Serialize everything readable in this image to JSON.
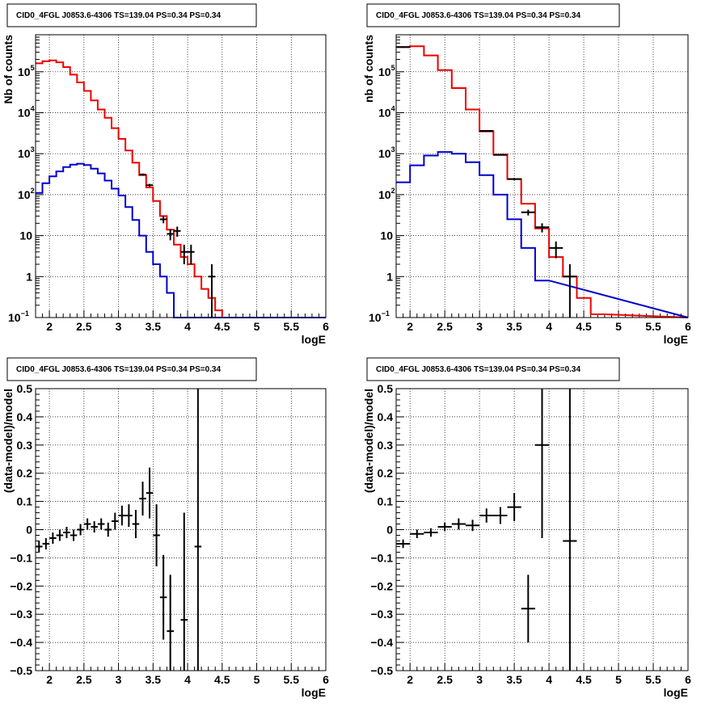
{
  "chart_data": [
    {
      "type": "line",
      "title": "CID0_4FGL J0853.6-4306 TS=139.04 PS=0.34 PS=0.34",
      "xlabel": "logE",
      "ylabel": "Nb of counts",
      "xlim": [
        1.8,
        6
      ],
      "ylim": [
        0.1,
        800000
      ],
      "yscale": "log",
      "grid": true,
      "x_ticks": [
        "2",
        "2.5",
        "3",
        "3.5",
        "4",
        "4.5",
        "5",
        "5.5",
        "6"
      ],
      "y_ticks": [
        {
          "value": 0.1,
          "label": "10",
          "exp": "−1"
        },
        {
          "value": 1,
          "label": "1",
          "exp": ""
        },
        {
          "value": 10,
          "label": "10",
          "exp": ""
        },
        {
          "value": 100,
          "label": "10",
          "exp": "2"
        },
        {
          "value": 1000,
          "label": "10",
          "exp": "3"
        },
        {
          "value": 10000,
          "label": "10",
          "exp": "4"
        },
        {
          "value": 100000,
          "label": "10",
          "exp": "5"
        }
      ],
      "bin_width": 0.1,
      "series": [
        {
          "color": "#ee0000",
          "style": "step",
          "x": [
            1.85,
            1.95,
            2.05,
            2.15,
            2.25,
            2.35,
            2.45,
            2.55,
            2.65,
            2.75,
            2.85,
            2.95,
            3.05,
            3.15,
            3.25,
            3.35,
            3.45,
            3.55,
            3.65,
            3.75,
            3.85,
            3.95,
            4.05,
            4.15,
            4.25,
            4.35,
            4.45,
            4.55
          ],
          "values": [
            160000,
            180000,
            190000,
            170000,
            130000,
            85000,
            55000,
            34000,
            20000,
            12000,
            7500,
            4200,
            2300,
            1200,
            600,
            300,
            150,
            70,
            30,
            14,
            6,
            3,
            2,
            1,
            0.5,
            0.3,
            0.15,
            0.1
          ]
        },
        {
          "color": "#0000cc",
          "style": "step",
          "x": [
            1.85,
            1.95,
            2.05,
            2.15,
            2.25,
            2.35,
            2.45,
            2.55,
            2.65,
            2.75,
            2.85,
            2.95,
            3.05,
            3.15,
            3.25,
            3.35,
            3.45,
            3.55,
            3.65,
            3.75,
            3.85
          ],
          "values": [
            110,
            190,
            280,
            370,
            470,
            540,
            570,
            530,
            430,
            330,
            220,
            140,
            95,
            50,
            24,
            10,
            4,
            2,
            1,
            0.4,
            0.1
          ]
        },
        {
          "color": "#000000",
          "style": "errorbar",
          "x": [
            3.35,
            3.45,
            3.65,
            3.75,
            3.85,
            3.95,
            4.05,
            4.35
          ],
          "values": [
            310,
            170,
            25,
            11,
            13,
            4,
            4,
            1
          ],
          "errors": [
            18,
            13,
            5,
            3.3,
            3.6,
            2,
            2,
            1
          ]
        }
      ]
    },
    {
      "type": "line",
      "title": "CID0_4FGL J0853.6-4306 TS=139.04 PS=0.34 PS=0.34",
      "xlabel": "logE",
      "ylabel": "nb of counts",
      "xlim": [
        1.8,
        6
      ],
      "ylim": [
        0.1,
        800000
      ],
      "yscale": "log",
      "grid": true,
      "x_ticks": [
        "2",
        "2.5",
        "3",
        "3.5",
        "4",
        "4.5",
        "5",
        "5.5",
        "6"
      ],
      "y_ticks": [
        {
          "value": 0.1,
          "label": "10",
          "exp": "−1"
        },
        {
          "value": 1,
          "label": "1",
          "exp": ""
        },
        {
          "value": 10,
          "label": "10",
          "exp": ""
        },
        {
          "value": 100,
          "label": "10",
          "exp": "2"
        },
        {
          "value": 1000,
          "label": "10",
          "exp": "3"
        },
        {
          "value": 10000,
          "label": "10",
          "exp": "4"
        },
        {
          "value": 100000,
          "label": "10",
          "exp": "5"
        }
      ],
      "bin_width": 0.2,
      "series": [
        {
          "color": "#ee0000",
          "style": "step",
          "x": [
            1.9,
            2.1,
            2.3,
            2.5,
            2.7,
            2.9,
            3.1,
            3.3,
            3.5,
            3.7,
            3.9,
            4.1,
            4.3,
            4.5,
            4.7
          ],
          "values": [
            400000,
            420000,
            250000,
            110000,
            40000,
            12000,
            3500,
            950,
            240,
            60,
            15,
            3,
            1,
            0.3,
            0.12
          ]
        },
        {
          "color": "#0000cc",
          "style": "step",
          "x": [
            1.9,
            2.1,
            2.3,
            2.5,
            2.7,
            2.9,
            3.1,
            3.3,
            3.5,
            3.7,
            3.9
          ],
          "values": [
            200,
            520,
            900,
            1100,
            1000,
            620,
            300,
            100,
            25,
            5,
            0.8
          ]
        },
        {
          "color": "#000000",
          "style": "errorbar",
          "x": [
            1.9,
            3.1,
            3.3,
            3.5,
            3.7,
            3.9,
            4.1,
            4.3
          ],
          "values": [
            400000,
            3600,
            930,
            240,
            37,
            16,
            5,
            1
          ],
          "errors": [
            630,
            60,
            30,
            15,
            6,
            4,
            2.2,
            1
          ]
        }
      ]
    },
    {
      "type": "scatter",
      "title": "CID0_4FGL J0853.6-4306 TS=139.04 PS=0.34 PS=0.34",
      "xlabel": "logE",
      "ylabel": "(data-model)/model",
      "xlim": [
        1.8,
        6
      ],
      "ylim": [
        -0.5,
        0.5
      ],
      "yscale": "linear",
      "grid": true,
      "x_ticks": [
        "2",
        "2.5",
        "3",
        "3.5",
        "4",
        "4.5",
        "5",
        "5.5",
        "6"
      ],
      "y_ticks": [
        {
          "value": 0.5,
          "label": "0.5"
        },
        {
          "value": 0.4,
          "label": "0.4"
        },
        {
          "value": 0.3,
          "label": "0.3"
        },
        {
          "value": 0.2,
          "label": "0.2"
        },
        {
          "value": 0.1,
          "label": "0.1"
        },
        {
          "value": 0,
          "label": "0"
        },
        {
          "value": -0.1,
          "label": "−0.1"
        },
        {
          "value": -0.2,
          "label": "−0.2"
        },
        {
          "value": -0.3,
          "label": "−0.3"
        },
        {
          "value": -0.4,
          "label": "−0.4"
        },
        {
          "value": -0.5,
          "label": "−0.5"
        }
      ],
      "bin_width": 0.1,
      "series": [
        {
          "color": "#000000",
          "style": "errorbar",
          "x": [
            1.85,
            1.95,
            2.05,
            2.15,
            2.25,
            2.35,
            2.45,
            2.55,
            2.65,
            2.75,
            2.85,
            2.95,
            3.05,
            3.15,
            3.25,
            3.35,
            3.45,
            3.55,
            3.65,
            3.75,
            3.95,
            4.15
          ],
          "values": [
            -0.06,
            -0.05,
            -0.03,
            -0.02,
            -0.01,
            -0.02,
            0,
            0.02,
            0.01,
            0.02,
            0,
            0.03,
            0.05,
            0.05,
            0.02,
            0.11,
            0.13,
            -0.02,
            -0.24,
            -0.36,
            -0.32,
            -0.06
          ],
          "errors": [
            0.02,
            0.02,
            0.02,
            0.02,
            0.02,
            0.02,
            0.02,
            0.02,
            0.02,
            0.02,
            0.025,
            0.03,
            0.035,
            0.04,
            0.05,
            0.06,
            0.09,
            0.11,
            0.15,
            0.2,
            0.38,
            1.0
          ]
        }
      ]
    },
    {
      "type": "scatter",
      "title": "CID0_4FGL J0853.6-4306 TS=139.04 PS=0.34 PS=0.34",
      "xlabel": "logE",
      "ylabel": "(data-model)/model",
      "xlim": [
        1.8,
        6
      ],
      "ylim": [
        -0.5,
        0.5
      ],
      "yscale": "linear",
      "grid": true,
      "x_ticks": [
        "2",
        "2.5",
        "3",
        "3.5",
        "4",
        "4.5",
        "5",
        "5.5",
        "6"
      ],
      "y_ticks": [
        {
          "value": 0.5,
          "label": "0.5"
        },
        {
          "value": 0.4,
          "label": "0.4"
        },
        {
          "value": 0.3,
          "label": "0.3"
        },
        {
          "value": 0.2,
          "label": "0.2"
        },
        {
          "value": 0.1,
          "label": "0.1"
        },
        {
          "value": 0,
          "label": "0"
        },
        {
          "value": -0.1,
          "label": "−0.1"
        },
        {
          "value": -0.2,
          "label": "−0.2"
        },
        {
          "value": -0.3,
          "label": "−0.3"
        },
        {
          "value": -0.4,
          "label": "−0.4"
        },
        {
          "value": -0.5,
          "label": "−0.5"
        }
      ],
      "bin_width": 0.2,
      "series": [
        {
          "color": "#000000",
          "style": "errorbar",
          "x": [
            1.9,
            2.1,
            2.3,
            2.5,
            2.7,
            2.9,
            3.1,
            3.3,
            3.5,
            3.7,
            3.9,
            4.3
          ],
          "values": [
            -0.05,
            -0.015,
            -0.01,
            0.01,
            0.02,
            0.015,
            0.05,
            0.05,
            0.08,
            -0.28,
            0.3,
            -0.04
          ],
          "errors": [
            0.015,
            0.015,
            0.015,
            0.015,
            0.02,
            0.02,
            0.025,
            0.03,
            0.05,
            0.12,
            0.33,
            1.0
          ]
        }
      ]
    }
  ]
}
